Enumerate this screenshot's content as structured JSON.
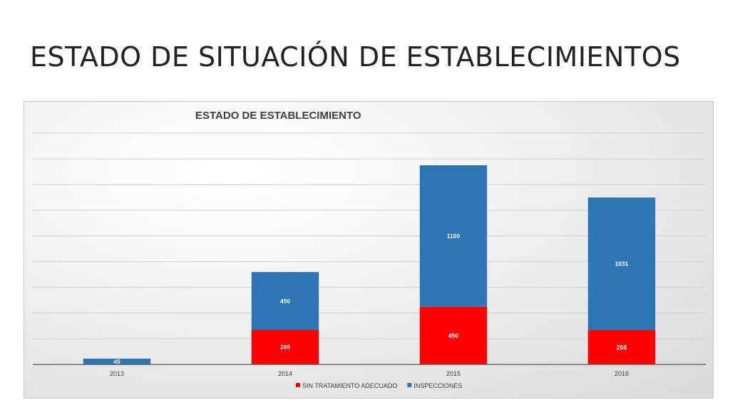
{
  "slide": {
    "title": "ESTADO DE SITUACIÓN DE ESTABLECIMIENTOS"
  },
  "chart_data": {
    "type": "bar",
    "stacked": true,
    "title": "ESTADO DE ESTABLECIMIENTO",
    "categories": [
      "2013",
      "2014",
      "2015",
      "2016"
    ],
    "series": [
      {
        "name": "SIN TRATAMIENTO ADECUADO",
        "color": "#ff0000",
        "values": [
          0,
          269,
          450,
          268
        ]
      },
      {
        "name": "INSPECCIONES",
        "color": "#2e75b6",
        "values": [
          45,
          450,
          1100,
          1031
        ]
      }
    ],
    "ylim": [
      0,
      1800
    ],
    "grid": true,
    "legend": "bottom"
  }
}
